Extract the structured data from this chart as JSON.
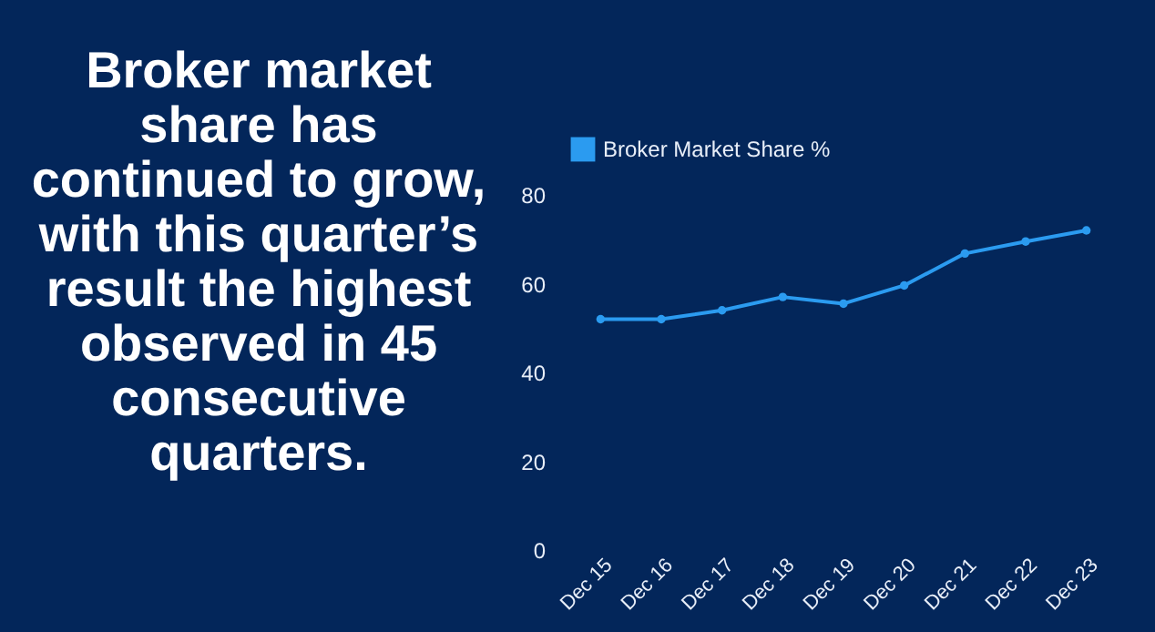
{
  "chart_data": {
    "type": "line",
    "title": "Broker market share has continued to grow, with this quarter’s result the highest observed in 45 consecutive quarters.",
    "categories": [
      "Dec 15",
      "Dec 16",
      "Dec 17",
      "Dec 18",
      "Dec 19",
      "Dec 20",
      "Dec 21",
      "Dec 22",
      "Dec 23"
    ],
    "series": [
      {
        "name": "Broker Market Share %",
        "color": "#2b9bf0",
        "values": [
          52,
          52,
          54,
          57,
          55.5,
          59.6,
          66.8,
          69.5,
          72
        ]
      }
    ],
    "ylim": [
      0,
      80
    ],
    "yticks": [
      0,
      20,
      40,
      60,
      80
    ],
    "grid": false,
    "legend": "top",
    "marker": "circle",
    "line_style": "solid"
  }
}
